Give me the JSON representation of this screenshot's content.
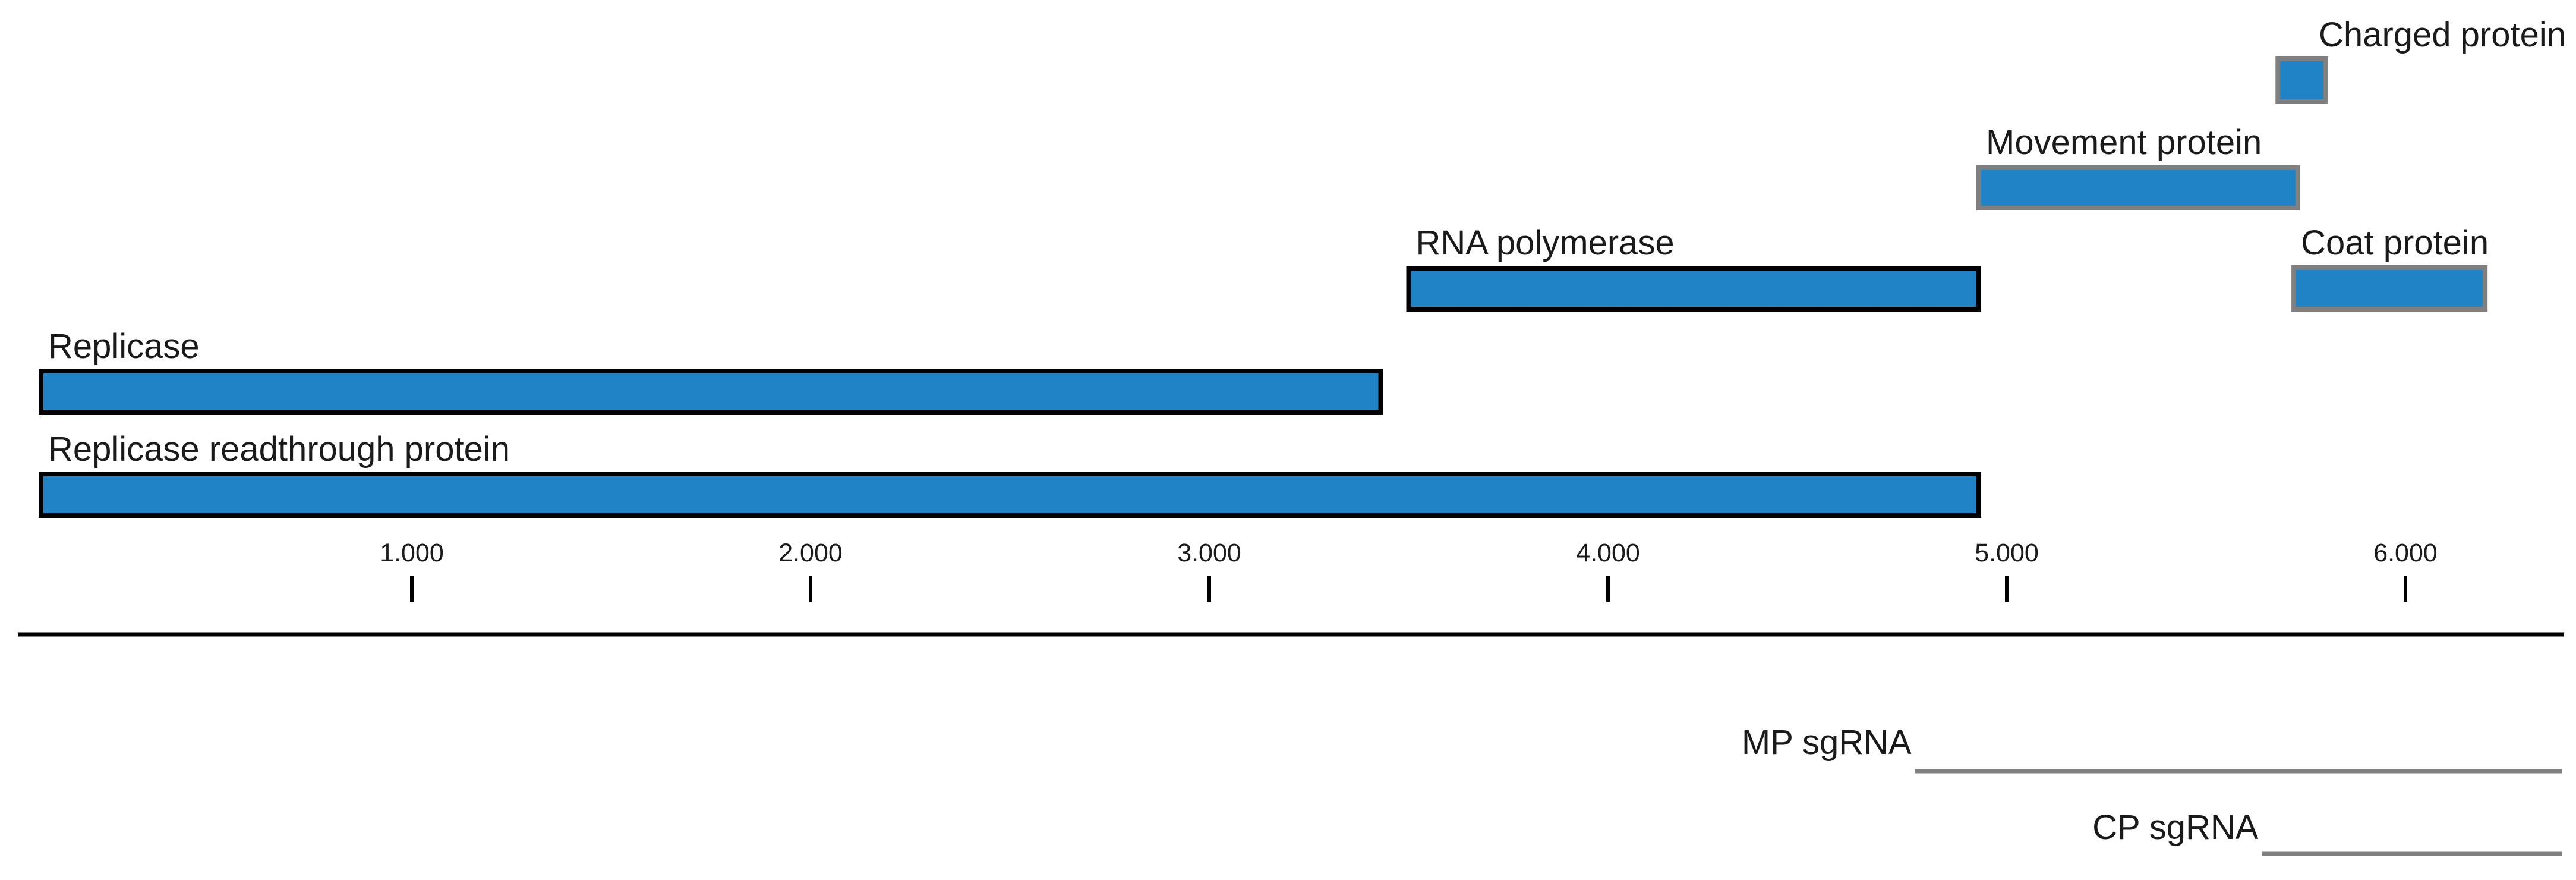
{
  "chart_data": {
    "type": "genome-map",
    "axis": {
      "range": [
        0,
        6400
      ],
      "ticks": [
        {
          "value": 1000,
          "label": "1.000"
        },
        {
          "value": 2000,
          "label": "2.000"
        },
        {
          "value": 3000,
          "label": "3.000"
        },
        {
          "value": 4000,
          "label": "4.000"
        },
        {
          "value": 5000,
          "label": "5.000"
        },
        {
          "value": 6000,
          "label": "6.000"
        }
      ]
    },
    "orfs": [
      {
        "label": "Replicase readthrough protein",
        "start": 70,
        "end": 4930,
        "outline": "#000000"
      },
      {
        "label": "Replicase",
        "start": 70,
        "end": 3430,
        "outline": "#000000"
      },
      {
        "label": "RNA polymerase",
        "start": 3500,
        "end": 4930,
        "outline": "#000000"
      },
      {
        "label": "Movement protein",
        "start": 4930,
        "end": 5730,
        "outline": "#7f7f7f"
      },
      {
        "label": "Coat protein",
        "start": 5720,
        "end": 6200,
        "outline": "#7f7f7f"
      },
      {
        "label": "Charged protein",
        "start": 5680,
        "end": 5800,
        "outline": "#7f7f7f"
      }
    ],
    "subgenomic_rnas": [
      {
        "label": "MP sgRNA",
        "start": 4770,
        "end": 6400
      },
      {
        "label": "CP sgRNA",
        "start": 5640,
        "end": 6400
      }
    ],
    "colors": {
      "orf_fill": "#1f83c6",
      "axis": "#000000",
      "sgrna": "#808080"
    }
  }
}
